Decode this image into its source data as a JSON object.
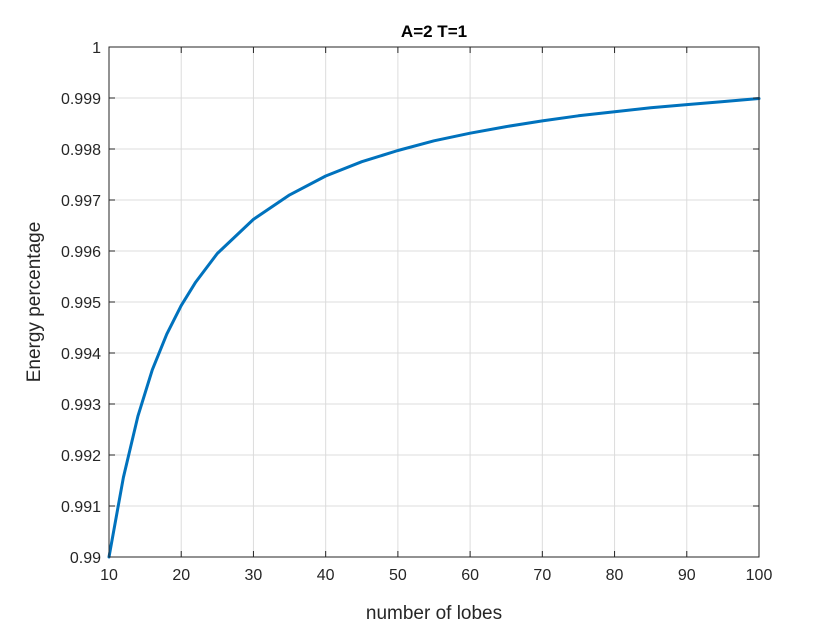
{
  "chart_data": {
    "type": "line",
    "title": "A=2 T=1",
    "xlabel": "number of lobes",
    "ylabel": "Energy percentage",
    "xlim": [
      10,
      100
    ],
    "ylim": [
      0.99,
      1
    ],
    "xticks": [
      10,
      20,
      30,
      40,
      50,
      60,
      70,
      80,
      90,
      100
    ],
    "xtick_labels": [
      "10",
      "20",
      "30",
      "40",
      "50",
      "60",
      "70",
      "80",
      "90",
      "100"
    ],
    "yticks": [
      0.99,
      0.991,
      0.992,
      0.993,
      0.994,
      0.995,
      0.996,
      0.997,
      0.998,
      0.999,
      1
    ],
    "ytick_labels": [
      "0.99",
      "0.991",
      "0.992",
      "0.993",
      "0.994",
      "0.995",
      "0.996",
      "0.997",
      "0.998",
      "0.999",
      "1"
    ],
    "grid": true,
    "series": [
      {
        "color": "#0072bd",
        "x": [
          10,
          12,
          14,
          16,
          18,
          20,
          22,
          25,
          30,
          35,
          40,
          45,
          50,
          55,
          60,
          65,
          70,
          75,
          80,
          85,
          90,
          95,
          100
        ],
        "y": [
          0.98987,
          0.99156,
          0.99276,
          0.99367,
          0.99437,
          0.99493,
          0.99539,
          0.99595,
          0.99662,
          0.9971,
          0.99747,
          0.99775,
          0.99797,
          0.99816,
          0.99831,
          0.99844,
          0.99855,
          0.99865,
          0.99873,
          0.99881,
          0.99887,
          0.99893,
          0.99899
        ]
      }
    ]
  }
}
